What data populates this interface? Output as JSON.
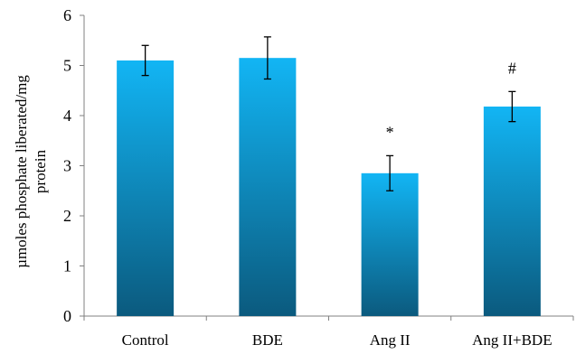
{
  "chart_data": {
    "type": "bar",
    "categories": [
      "Control",
      "BDE",
      "Ang II",
      "Ang II+BDE"
    ],
    "values": [
      5.1,
      5.15,
      2.85,
      4.18
    ],
    "error": [
      0.3,
      0.42,
      0.35,
      0.3
    ],
    "annotations": [
      "",
      "",
      "*",
      "#"
    ],
    "ylabel_lines": [
      "µmoles phosphate liberated/mg",
      "protein"
    ],
    "xlabel": "",
    "ylim": [
      0,
      6
    ],
    "yticks": [
      "0",
      "1",
      "2",
      "3",
      "4",
      "5",
      "6"
    ],
    "grid": false,
    "legend": "none",
    "bar_color_top": "#12b5f4",
    "bar_color_bottom": "#0b5a7e"
  }
}
